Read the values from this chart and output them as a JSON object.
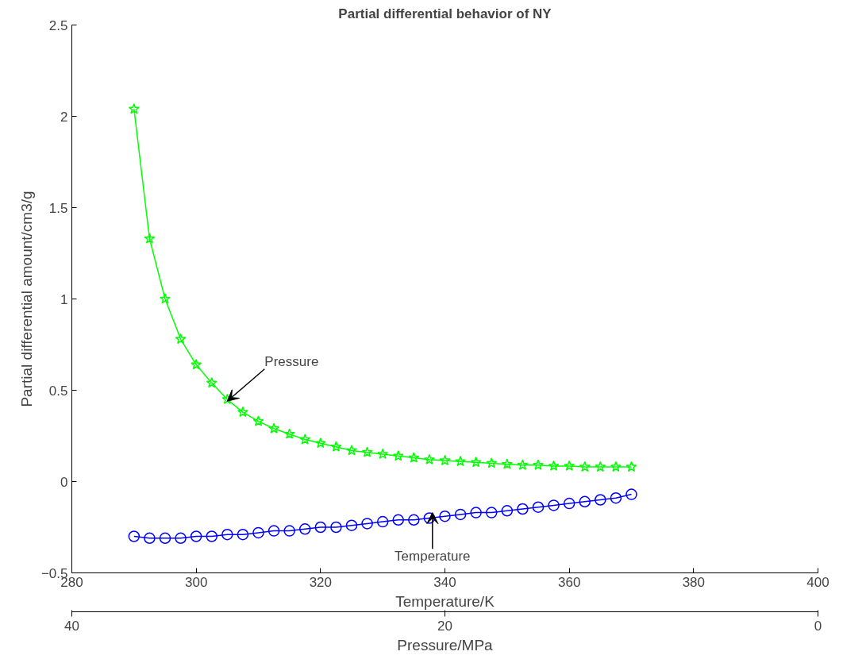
{
  "chart_data": {
    "type": "line",
    "title": "Partial differential behavior of NY",
    "xlabel": "Temperature/K",
    "ylabel": "Partial differential amount/cm3/g",
    "x2label": "Pressure/MPa",
    "x": [
      290,
      292.5,
      295,
      297.5,
      300,
      302.5,
      305,
      307.5,
      310,
      312.5,
      315,
      317.5,
      320,
      322.5,
      325,
      327.5,
      330,
      332.5,
      335,
      337.5,
      340,
      342.5,
      345,
      347.5,
      350,
      352.5,
      355,
      357.5,
      360,
      362.5,
      365,
      367.5,
      370
    ],
    "series": [
      {
        "color": "#00ff00",
        "marker": "star",
        "values": [
          2.04,
          1.33,
          1.0,
          0.78,
          0.64,
          0.54,
          0.45,
          0.38,
          0.33,
          0.29,
          0.26,
          0.23,
          0.21,
          0.19,
          0.17,
          0.16,
          0.15,
          0.14,
          0.13,
          0.12,
          0.115,
          0.11,
          0.105,
          0.1,
          0.095,
          0.09,
          0.09,
          0.085,
          0.085,
          0.08,
          0.08,
          0.08,
          0.08
        ]
      },
      {
        "color": "#0000ff",
        "marker": "circle",
        "values": [
          -0.3,
          -0.31,
          -0.31,
          -0.31,
          -0.3,
          -0.3,
          -0.29,
          -0.29,
          -0.28,
          -0.27,
          -0.27,
          -0.26,
          -0.25,
          -0.25,
          -0.24,
          -0.23,
          -0.22,
          -0.21,
          -0.21,
          -0.2,
          -0.19,
          -0.18,
          -0.17,
          -0.17,
          -0.16,
          -0.15,
          -0.14,
          -0.13,
          -0.12,
          -0.11,
          -0.1,
          -0.09,
          -0.07
        ]
      }
    ],
    "xlim": [
      280,
      400
    ],
    "xticks": [
      280,
      300,
      320,
      340,
      360,
      380,
      400
    ],
    "ylim": [
      -0.5,
      2.5
    ],
    "yticks": [
      -0.5,
      0,
      0.5,
      1,
      1.5,
      2,
      2.5
    ],
    "x2lim": [
      40,
      0
    ],
    "x2ticks": [
      0,
      20,
      40
    ],
    "annotations": [
      {
        "text": "Pressure",
        "x": 305,
        "y": 0.44
      },
      {
        "text": "Temperature",
        "x": 338,
        "y": -0.17
      }
    ],
    "grid": false
  }
}
